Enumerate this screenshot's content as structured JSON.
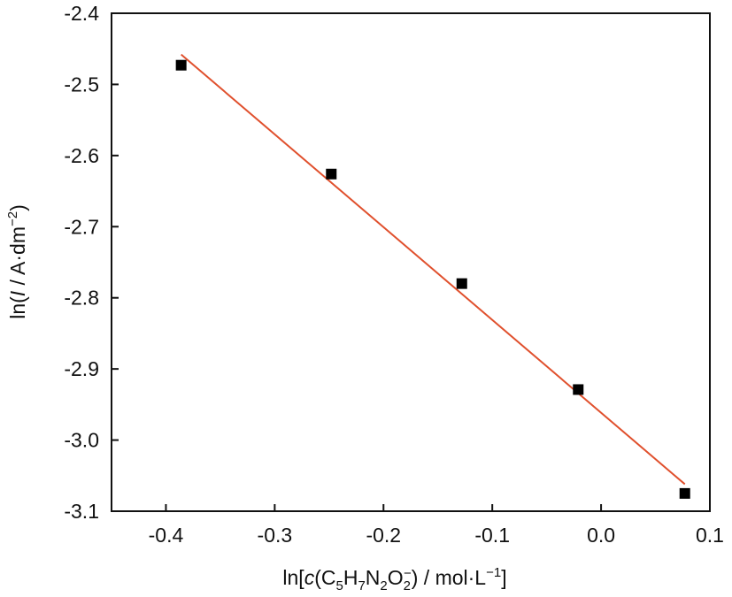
{
  "chart_data": {
    "type": "scatter",
    "xlim": [
      -0.45,
      0.1
    ],
    "ylim": [
      -3.1,
      -2.4
    ],
    "x_ticks": [
      {
        "value": -0.4,
        "label": "-0.4"
      },
      {
        "value": -0.3,
        "label": "-0.3"
      },
      {
        "value": -0.2,
        "label": "-0.2"
      },
      {
        "value": -0.1,
        "label": "-0.1"
      },
      {
        "value": 0.0,
        "label": "0.0"
      },
      {
        "value": 0.1,
        "label": "0.1"
      }
    ],
    "y_ticks": [
      {
        "value": -2.4,
        "label": "-2.4"
      },
      {
        "value": -2.5,
        "label": "-2.5"
      },
      {
        "value": -2.6,
        "label": "-2.6"
      },
      {
        "value": -2.7,
        "label": "-2.7"
      },
      {
        "value": -2.8,
        "label": "-2.8"
      },
      {
        "value": -2.9,
        "label": "-2.9"
      },
      {
        "value": -3.0,
        "label": "-3.0"
      },
      {
        "value": -3.1,
        "label": "-3.1"
      }
    ],
    "xlabel": {
      "pre": "ln[",
      "var": "c",
      "mid1": "(C",
      "sub1": "5",
      "mid2": "H",
      "sub2": "7",
      "mid3": "N",
      "sub3": "2",
      "mid4": "O",
      "sub4": "2",
      "sup4": "−",
      "mid5": ") / mol·L",
      "sup5": "−1",
      "post": "]"
    },
    "ylabel": {
      "pre": "ln(",
      "var": "I",
      "mid": " / A·dm",
      "sup": "−2",
      "post": ")"
    },
    "series": [
      {
        "marker": "square",
        "color": "#000000",
        "points": [
          {
            "x": -0.386,
            "y": -2.473
          },
          {
            "x": -0.248,
            "y": -2.626
          },
          {
            "x": -0.128,
            "y": -2.78
          },
          {
            "x": -0.021,
            "y": -2.929
          },
          {
            "x": 0.077,
            "y": -3.075
          }
        ]
      }
    ],
    "fit_line": {
      "color": "#e0502d",
      "x": [
        -0.386,
        0.077
      ],
      "y": [
        -2.458,
        -3.062
      ]
    },
    "grid": false
  }
}
